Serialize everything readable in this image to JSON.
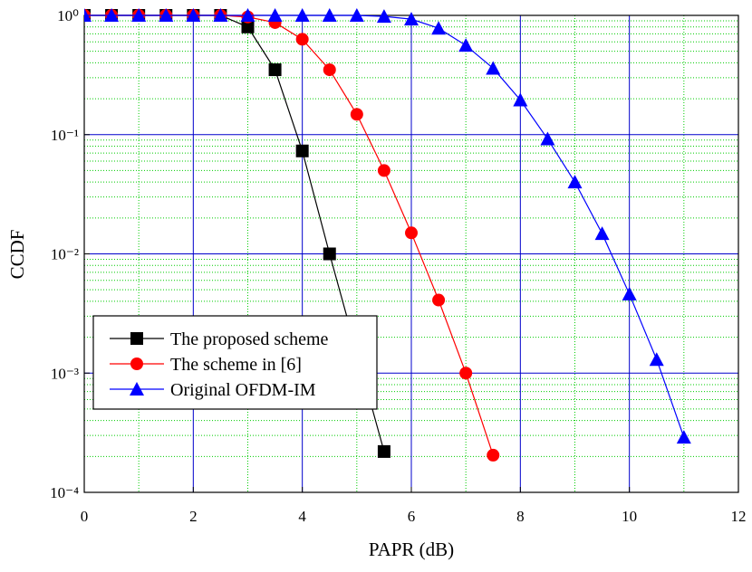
{
  "chart_data": {
    "type": "line",
    "xlabel": "PAPR (dB)",
    "ylabel": "CCDF",
    "xlim": [
      0,
      12
    ],
    "xticks": [
      0,
      2,
      4,
      6,
      8,
      10,
      12
    ],
    "ylim": [
      0.0001,
      1
    ],
    "log_y": true,
    "yticks": [
      {
        "value": 0.0001,
        "label": "10⁻⁴"
      },
      {
        "value": 0.001,
        "label": "10⁻³"
      },
      {
        "value": 0.01,
        "label": "10⁻²"
      },
      {
        "value": 0.1,
        "label": "10⁻¹"
      },
      {
        "value": 1,
        "label": "10⁰"
      }
    ],
    "grid": true,
    "grid_color": "#0000cc",
    "minor_grid": true,
    "minor_grid_color": "#00cc00",
    "legend_position": "lower left",
    "series": [
      {
        "name": "The proposed scheme",
        "color": "#000000",
        "marker": "square",
        "x": [
          0,
          0.5,
          1,
          1.5,
          2,
          2.5,
          3,
          3.5,
          4,
          4.5,
          5.5
        ],
        "values": [
          1,
          1,
          1,
          1,
          1,
          1,
          0.8,
          0.35,
          0.073,
          0.01,
          0.00022
        ]
      },
      {
        "name": "The scheme in [6]",
        "color": "#ff0000",
        "marker": "circle",
        "x": [
          0,
          0.5,
          1,
          1.5,
          2,
          2.5,
          3,
          3.5,
          4,
          4.5,
          5,
          5.5,
          6,
          6.5,
          7,
          7.5
        ],
        "values": [
          1,
          1,
          1,
          1,
          1,
          1,
          0.97,
          0.87,
          0.63,
          0.35,
          0.148,
          0.05,
          0.015,
          0.0041,
          0.001,
          0.000205
        ]
      },
      {
        "name": "Original OFDM-IM",
        "color": "#0000ff",
        "marker": "triangle",
        "x": [
          0,
          0.5,
          1,
          1.5,
          2,
          2.5,
          3,
          3.5,
          4,
          4.5,
          5,
          5.5,
          6,
          6.5,
          7,
          7.5,
          8,
          8.5,
          9,
          9.5,
          10,
          10.5,
          11
        ],
        "values": [
          1,
          1,
          1,
          1,
          1,
          1,
          1,
          1,
          1,
          1,
          1,
          0.98,
          0.93,
          0.78,
          0.56,
          0.36,
          0.195,
          0.092,
          0.04,
          0.0148,
          0.0046,
          0.0013,
          0.00029
        ]
      }
    ]
  }
}
